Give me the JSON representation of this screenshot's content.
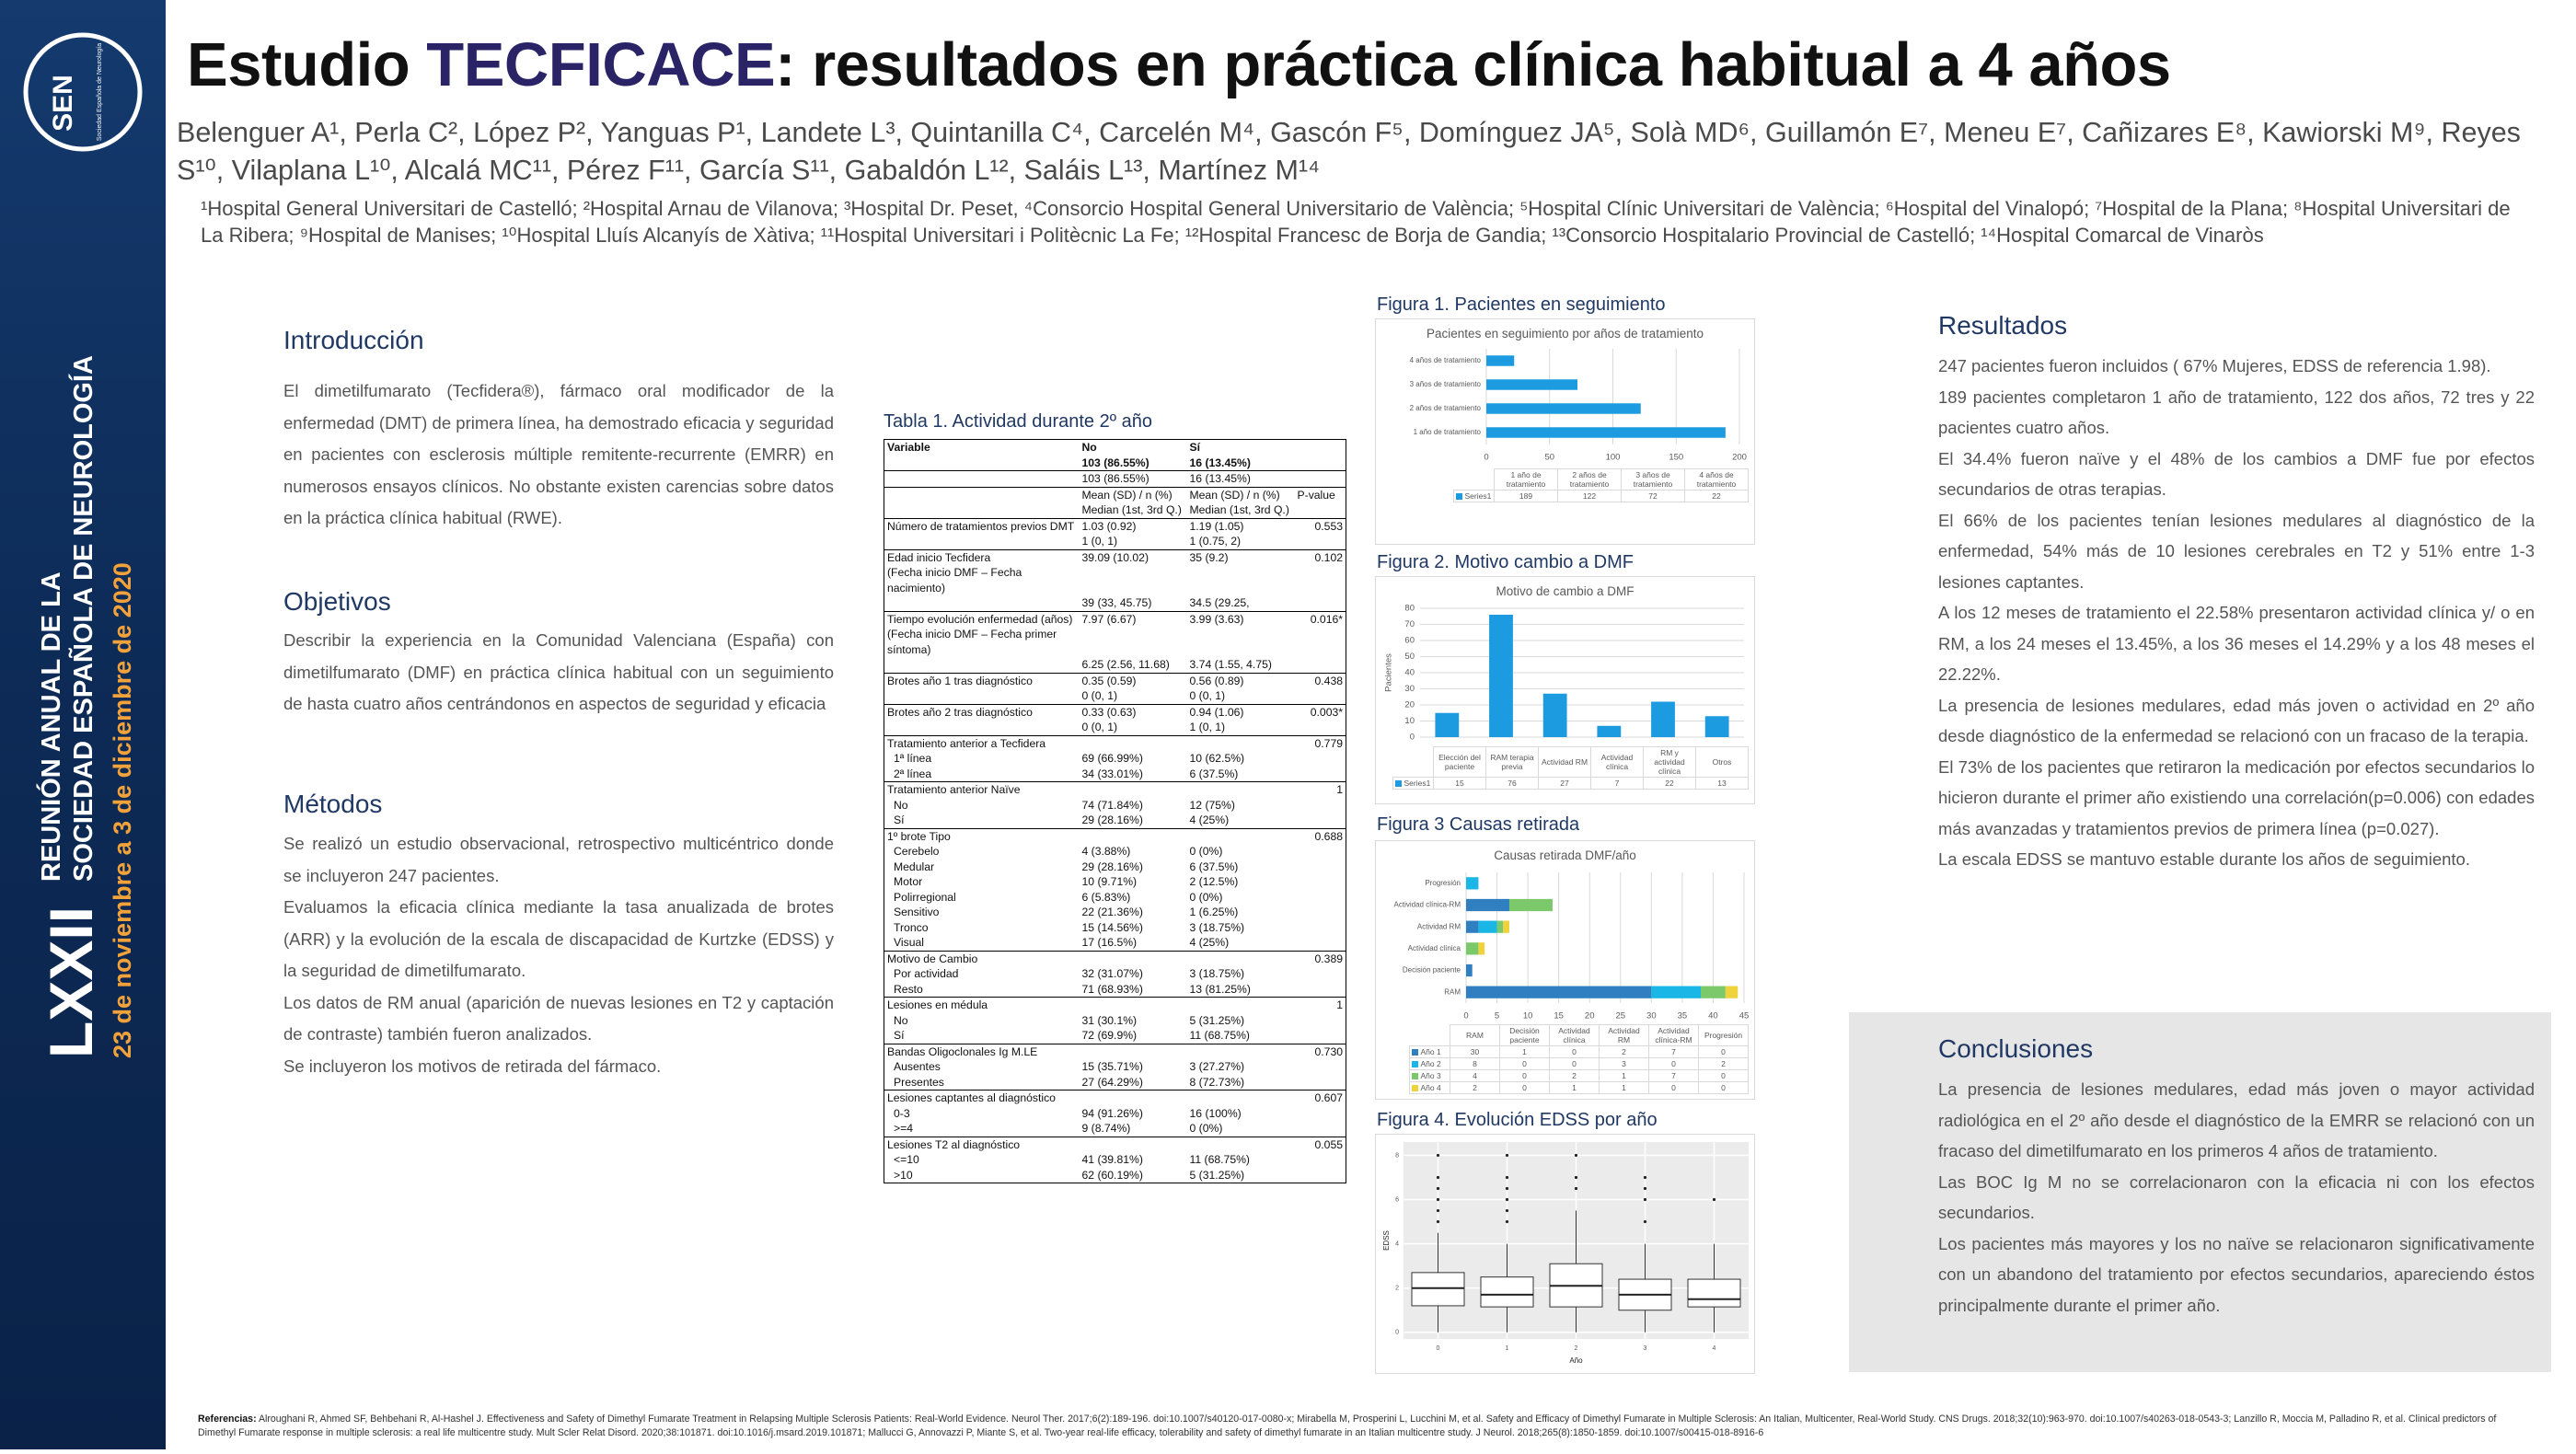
{
  "sidebar": {
    "logo": "SEN",
    "logo_sub": "Sociedad Española de Neurología",
    "edition": "LXXII",
    "line1": "REUNIÓN ANUAL DE LA",
    "line2": "SOCIEDAD ESPAÑOLA DE NEUROLOGÍA",
    "dates": "23 de noviembre a 3 de diciembre de 2020"
  },
  "header": {
    "title_start": "Estudio ",
    "title_highlight": "TECFICACE",
    "title_end": ": resultados en práctica clínica habitual a 4 años",
    "authors": "Belenguer A¹, Perla C², López P², Yanguas P¹, Landete L³, Quintanilla C⁴, Carcelén M⁴, Gascón F⁵, Domínguez JA⁵, Solà MD⁶, Guillamón E⁷, Meneu E⁷, Cañizares E⁸, Kawiorski M⁹, Reyes S¹⁰, Vilaplana L¹⁰, Alcalá MC¹¹, Pérez F¹¹, García S¹¹, Gabaldón L¹², Saláis L¹³, Martínez M¹⁴",
    "affiliations": "¹Hospital General Universitari de Castelló; ²Hospital Arnau de Vilanova; ³Hospital Dr. Peset, ⁴Consorcio Hospital General Universitario de València; ⁵Hospital Clínic Universitari de València; ⁶Hospital del Vinalopó; ⁷Hospital de la Plana; ⁸Hospital Universitari de La Ribera; ⁹Hospital de Manises; ¹⁰Hospital Lluís Alcanyís de Xàtiva; ¹¹Hospital Universitari i Politècnic La Fe; ¹²Hospital Francesc de Borja de Gandia; ¹³Consorcio Hospitalario Provincial de Castelló; ¹⁴Hospital Comarcal de Vinaròs"
  },
  "introduction": {
    "heading": "Introducción",
    "paragraphs": [
      "El dimetilfumarato (Tecfidera®), fármaco oral modificador de la enfermedad (DMT) de primera línea, ha demostrado eficacia y seguridad en pacientes con esclerosis múltiple remitente-recurrente (EMRR) en numerosos ensayos clínicos. No obstante existen carencias sobre datos en la práctica clínica habitual (RWE)."
    ]
  },
  "objectives": {
    "heading": "Objetivos",
    "paragraphs": [
      "Describir la experiencia en la Comunidad Valenciana (España) con dimetilfumarato (DMF) en práctica clínica habitual con un seguimiento de hasta cuatro años centrándonos en aspectos de seguridad y eficacia"
    ]
  },
  "methods": {
    "heading": "Métodos",
    "paragraphs": [
      "Se realizó un estudio observacional, retrospectivo multicéntrico donde se incluyeron 247 pacientes.",
      "Evaluamos la eficacia clínica mediante la tasa anualizada de brotes (ARR) y la evolución de la escala de discapacidad de Kurtzke (EDSS) y la seguridad de dimetilfumarato.",
      "Los datos de RM anual (aparición de nuevas lesiones en T2 y captación de contraste) también fueron analizados.",
      "Se incluyeron los motivos de retirada del fármaco."
    ]
  },
  "table": {
    "title": "Tabla 1. Actividad durante 2º año",
    "header": {
      "columns": [
        "Variable",
        "No",
        "Sí"
      ],
      "n": [
        "103 (86.55%)",
        "16 (13.45%)"
      ],
      "stat": "Mean (SD) / n (%)\nMedian (1st, 3rd Q.)",
      "pvalue": "P-value"
    },
    "rows": [
      [
        "Número de tratamientos previos DMT",
        "1.03 (0.92)\n1 (0, 1)",
        "1.19 (1.05)\n1 (0.75, 2)",
        "0.553"
      ],
      [
        "Edad inicio Tecfidera\n(Fecha inicio DMF – Fecha nacimiento)",
        "39.09 (10.02)\n\n\n39 (33, 45.75)",
        "35 (9.2)\n\n\n34.5 (29.25,",
        "0.102"
      ],
      [
        "Tiempo evolución enfermedad (años)\n(Fecha inicio DMF – Fecha primer síntoma)",
        "7.97 (6.67)\n\n\n6.25 (2.56, 11.68)",
        "3.99 (3.63)\n\n\n3.74 (1.55, 4.75)",
        "0.016*"
      ],
      [
        "Brotes año 1 tras diagnóstico",
        "0.35 (0.59)\n0 (0, 1)",
        "0.56 (0.89)\n0 (0, 1)",
        "0.438"
      ],
      [
        "Brotes año 2 tras diagnóstico",
        "0.33 (0.63)\n0 (0, 1)",
        "0.94 (1.06)\n1 (0, 1)",
        "0.003*"
      ],
      [
        "Tratamiento anterior a Tecfidera",
        null,
        null,
        "0.779"
      ],
      [
        "1ª línea",
        "69 (66.99%)",
        "10 (62.5%)",
        null
      ],
      [
        "2ª línea",
        "34 (33.01%)",
        "6 (37.5%)",
        null
      ],
      [
        "Tratamiento anterior Naïve",
        null,
        null,
        "1"
      ],
      [
        "No",
        "74 (71.84%)",
        "12 (75%)",
        null
      ],
      [
        "Sí",
        "29 (28.16%)",
        "4 (25%)",
        null
      ],
      [
        "1º brote Tipo",
        null,
        null,
        "0.688"
      ],
      [
        "Cerebelo",
        "4 (3.88%)",
        "0 (0%)",
        null
      ],
      [
        "Medular",
        "29 (28.16%)",
        "6 (37.5%)",
        null
      ],
      [
        "Motor",
        "10 (9.71%)",
        "2 (12.5%)",
        null
      ],
      [
        "Polirregional",
        "6 (5.83%)",
        "0 (0%)",
        null
      ],
      [
        "Sensitivo",
        "22 (21.36%)",
        "1 (6.25%)",
        null
      ],
      [
        "Tronco",
        "15 (14.56%)",
        "3 (18.75%)",
        null
      ],
      [
        "Visual",
        "17 (16.5%)",
        "4 (25%)",
        null
      ],
      [
        "Motivo de Cambio",
        null,
        null,
        "0.389"
      ],
      [
        "Por actividad",
        "32 (31.07%)",
        "3 (18.75%)",
        null
      ],
      [
        "Resto",
        "71 (68.93%)",
        "13 (81.25%)",
        null
      ],
      [
        "Lesiones en médula",
        null,
        null,
        "1"
      ],
      [
        "No",
        "31 (30.1%)",
        "5 (31.25%)",
        null
      ],
      [
        "Sí",
        "72 (69.9%)",
        "11 (68.75%)",
        null
      ],
      [
        "Bandas Oligoclonales Ig M.LE",
        null,
        null,
        "0.730"
      ],
      [
        "Ausentes",
        "15 (35.71%)",
        "3 (27.27%)",
        null
      ],
      [
        "Presentes",
        "27 (64.29%)",
        "8 (72.73%)",
        null
      ],
      [
        "Lesiones captantes al diagnóstico",
        null,
        null,
        "0.607"
      ],
      [
        "0-3",
        "94 (91.26%)",
        "16 (100%)",
        null
      ],
      [
        ">=4",
        "9 (8.74%)",
        "0 (0%)",
        null
      ],
      [
        "Lesiones T2 al diagnóstico",
        null,
        null,
        "0.055"
      ],
      [
        "<=10",
        "41 (39.81%)",
        "11 (68.75%)",
        null
      ],
      [
        ">10",
        "62 (60.19%)",
        "5 (31.25%)",
        null
      ]
    ]
  },
  "figures": [
    {
      "caption": "Figura 1. Pacientes en seguimiento",
      "chart": {
        "type": "hbar",
        "title": "Pacientes en seguimiento por años de tratamiento",
        "categories": [
          "1 año de tratamiento",
          "2 años de tratamiento",
          "3 años de tratamiento",
          "4 años de tratamiento"
        ],
        "values": [
          189,
          122,
          72,
          22
        ],
        "series_name": "Series1",
        "color": "#1c9be0",
        "xlim": [
          0,
          200
        ],
        "xticks": [
          0,
          50,
          100,
          150,
          200
        ],
        "grid": true
      }
    },
    {
      "caption": "Figura 2. Motivo cambio a DMF",
      "chart": {
        "type": "bar",
        "title": "Motivo de cambio a DMF",
        "y_label": "Pacientes",
        "categories": [
          "Elección del paciente",
          "RAM terapia previa",
          "Actividad RM",
          "Actividad clínica",
          "RM y actividad clínica",
          "Otros"
        ],
        "values": [
          15,
          76,
          27,
          7,
          22,
          13
        ],
        "series_name": "Series1",
        "color": "#1c9be0",
        "ylim": [
          0,
          80
        ],
        "yticks": [
          0,
          10,
          20,
          30,
          40,
          50,
          60,
          70,
          80
        ],
        "grid": true
      }
    },
    {
      "caption": "Figura 3 Causas retirada",
      "chart": {
        "type": "stacked-hbar",
        "title": "Causas retirada DMF/año",
        "categories": [
          "RAM",
          "Decisión paciente",
          "Actividad clínica",
          "Actividad RM",
          "Actividad clínica-RM",
          "Progresión"
        ],
        "series": [
          {
            "name": "Año 1",
            "color": "#2f7fc1",
            "values": [
              30,
              1,
              0,
              2,
              7,
              0
            ]
          },
          {
            "name": "Año 2",
            "color": "#19b6e6",
            "values": [
              8,
              0,
              0,
              3,
              0,
              2
            ]
          },
          {
            "name": "Año 3",
            "color": "#7cc96b",
            "values": [
              4,
              0,
              2,
              1,
              7,
              0
            ]
          },
          {
            "name": "Año 4",
            "color": "#f0d23c",
            "values": [
              2,
              0,
              1,
              1,
              0,
              0
            ]
          }
        ],
        "xlim": [
          0,
          45
        ],
        "xticks": [
          0,
          5,
          10,
          15,
          20,
          25,
          30,
          35,
          40,
          45
        ],
        "grid": true
      }
    },
    {
      "caption": "Figura 4. Evolución EDSS por año",
      "chart": {
        "type": "box",
        "x_label": "Año",
        "y_label": "EDSS",
        "x": [
          0,
          1,
          2,
          3,
          4
        ],
        "xlim": [
          -0.5,
          4.5
        ],
        "xticks": [
          0,
          1,
          2,
          3,
          4
        ],
        "ylim": [
          -0.3,
          8.6
        ],
        "yticks": [
          0,
          2,
          4,
          6,
          8
        ],
        "boxes": [
          {
            "min": 0,
            "q1": 1.2,
            "median": 2,
            "q3": 2.7,
            "max": 4.5,
            "outliers": [
              5,
              5.5,
              6,
              6.5,
              7,
              8
            ]
          },
          {
            "min": 0,
            "q1": 1.15,
            "median": 1.7,
            "q3": 2.5,
            "max": 4,
            "outliers": [
              5,
              5.5,
              6,
              6.5,
              7,
              8
            ]
          },
          {
            "min": 0,
            "q1": 1.15,
            "median": 2.1,
            "q3": 3.1,
            "max": 5.5,
            "outliers": [
              6.5,
              7,
              8
            ]
          },
          {
            "min": 0,
            "q1": 1,
            "median": 1.7,
            "q3": 2.4,
            "max": 4,
            "outliers": [
              5,
              6,
              6.5,
              7
            ]
          },
          {
            "min": 0,
            "q1": 1.15,
            "median": 1.5,
            "q3": 2.4,
            "max": 4,
            "outliers": [
              6
            ]
          }
        ]
      }
    }
  ],
  "results": {
    "heading": "Resultados",
    "paragraphs": [
      "247 pacientes fueron incluidos ( 67% Mujeres, EDSS de referencia 1.98).",
      "189 pacientes completaron 1 año de tratamiento, 122 dos años, 72  tres y 22 pacientes cuatro años.",
      "El 34.4% fueron naïve y el 48% de los cambios a DMF fue por efectos secundarios de otras terapias.",
      "El 66% de los pacientes tenían lesiones medulares al diagnóstico de la enfermedad,  54% más de 10 lesiones cerebrales en T2 y  51% entre 1-3 lesiones captantes.",
      "A los 12 meses de tratamiento el 22.58% presentaron actividad clínica y/ o en RM, a los 24 meses el 13.45%, a los 36 meses el 14.29% y a los 48 meses el 22.22%.",
      "La presencia de lesiones medulares, edad más joven o actividad en 2º año desde diagnóstico de la enfermedad se relacionó con un fracaso de la terapia.",
      "El 73% de los pacientes que retiraron la medicación por efectos secundarios lo hicieron durante el primer año existiendo una correlación(p=0.006) con edades más avanzadas y tratamientos previos de primera línea (p=0.027).",
      "La escala EDSS se mantuvo estable durante los años de seguimiento."
    ]
  },
  "conclusions": {
    "heading": "Conclusiones",
    "paragraphs": [
      "La presencia de lesiones medulares, edad más joven o mayor actividad radiológica en el 2º año desde el diagnóstico de la EMRR  se relacionó con un fracaso del dimetilfumarato en los primeros 4 años de tratamiento.",
      "Las BOC Ig M no se correlacionaron con la eficacia ni con los efectos secundarios.",
      "Los pacientes más mayores y los no naïve se relacionaron significativamente   con un abandono del tratamiento por efectos secundarios, apareciendo éstos principalmente durante el primer año."
    ]
  },
  "references": {
    "label": "Referencias:",
    "text": " Alroughani R, Ahmed SF, Behbehani R, Al-Hashel J. Effectiveness and Safety of Dimethyl Fumarate Treatment in Relapsing Multiple Sclerosis Patients: Real-World Evidence. Neurol Ther. 2017;6(2):189-196. doi:10.1007/s40120-017-0080-x; Mirabella M, Prosperini L, Lucchini M, et al. Safety and Efficacy of Dimethyl Fumarate in Multiple Sclerosis: An Italian, Multicenter, Real-World Study. CNS Drugs. 2018;32(10):963-970. doi:10.1007/s40263-018-0543-3; Lanzillo R, Moccia M, Palladino R, et al. Clinical predictors of Dimethyl Fumarate response in multiple sclerosis: a real life multicentre study. Mult Scler Relat Disord. 2020;38:101871. doi:10.1016/j.msard.2019.101871; Mallucci G, Annovazzi P, Miante S, et al. Two-year real-life efficacy, tolerability and safety of dimethyl fumarate in an Italian multicentre study. J Neurol. 2018;265(8):1850-1859. doi:10.1007/s00415-018-8916-6"
  }
}
